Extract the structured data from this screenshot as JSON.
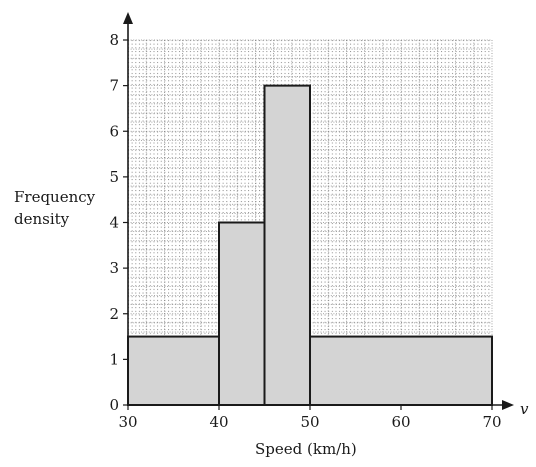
{
  "chart_data": {
    "type": "histogram",
    "xlabel": "Speed (km/h)",
    "x_var": "v",
    "ylabel_line1": "Frequency",
    "ylabel_line2": "density",
    "xlim": [
      30,
      70
    ],
    "ylim": [
      0,
      8
    ],
    "x_ticks": [
      "30",
      "40",
      "50",
      "60",
      "70"
    ],
    "y_ticks": [
      "0",
      "1",
      "2",
      "3",
      "4",
      "5",
      "6",
      "7",
      "8"
    ],
    "grid": true,
    "bars": [
      {
        "x_start": 30,
        "x_end": 40,
        "value": 1.5
      },
      {
        "x_start": 40,
        "x_end": 45,
        "value": 4
      },
      {
        "x_start": 45,
        "x_end": 50,
        "value": 7
      },
      {
        "x_start": 50,
        "x_end": 70,
        "value": 1.5
      }
    ],
    "colors": {
      "bar_fill": "#d4d4d4",
      "bar_stroke": "#1a1a1a",
      "grid": "#8c8c8c",
      "axis": "#1a1a1a"
    }
  }
}
